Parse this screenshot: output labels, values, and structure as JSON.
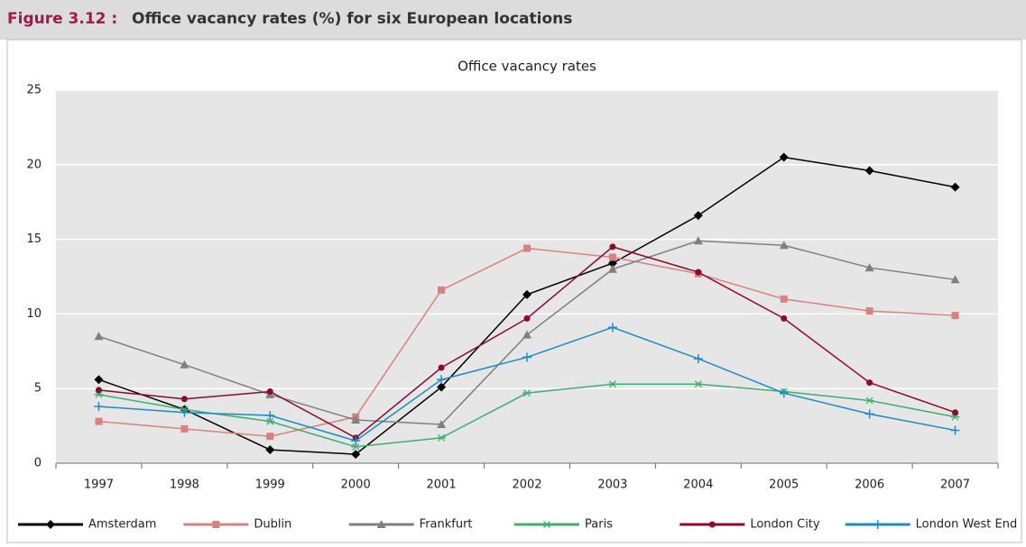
{
  "figure_label": "Figure 3.12 :",
  "figure_title": "Office vacancy rates (%) for six European locations",
  "chart_data": {
    "type": "line",
    "title": "Office vacancy rates",
    "categories": [
      "1997",
      "1998",
      "1999",
      "2000",
      "2001",
      "2002",
      "2003",
      "2004",
      "2005",
      "2006",
      "2007"
    ],
    "series": [
      {
        "name": "Amsterdam",
        "color": "#000000",
        "marker": "diamond",
        "values": [
          5.6,
          3.6,
          0.9,
          0.6,
          5.1,
          11.3,
          13.4,
          16.6,
          20.5,
          19.6,
          18.5
        ]
      },
      {
        "name": "Dublin",
        "color": "#d9827d",
        "marker": "square",
        "values": [
          2.8,
          2.3,
          1.8,
          3.1,
          11.6,
          14.4,
          13.8,
          12.7,
          11.0,
          10.2,
          9.9
        ]
      },
      {
        "name": "Frankfurt",
        "color": "#7f7f7f",
        "marker": "triangle",
        "values": [
          8.5,
          6.6,
          4.6,
          2.9,
          2.6,
          8.6,
          13.0,
          14.9,
          14.6,
          13.1,
          12.3
        ]
      },
      {
        "name": "Paris",
        "color": "#3fae6e",
        "marker": "asterisk",
        "values": [
          4.6,
          3.6,
          2.8,
          1.1,
          1.7,
          4.7,
          5.3,
          5.3,
          4.8,
          4.2,
          3.1
        ]
      },
      {
        "name": "London City",
        "color": "#8b0a2e",
        "marker": "circle",
        "values": [
          4.9,
          4.3,
          4.8,
          1.7,
          6.4,
          9.7,
          14.5,
          12.8,
          9.7,
          5.4,
          3.4
        ]
      },
      {
        "name": "London West End",
        "color": "#1a8ac8",
        "marker": "plus",
        "values": [
          3.8,
          3.4,
          3.2,
          1.5,
          5.6,
          7.1,
          9.1,
          7.0,
          4.7,
          3.3,
          2.2
        ]
      }
    ],
    "ylim": [
      0,
      25
    ],
    "yticks": [
      0,
      5,
      10,
      15,
      20,
      25
    ],
    "grid": true,
    "legend": "bottom"
  }
}
